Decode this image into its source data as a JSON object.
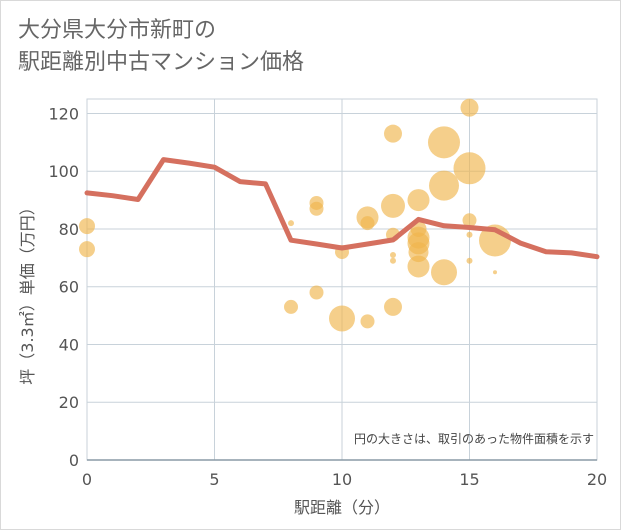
{
  "title_line1": "大分県大分市新町の",
  "title_line2": "駅距離別中古マンション価格",
  "chart_data": {
    "type": "scatter",
    "title": "大分県大分市新町の 駅距離別中古マンション価格",
    "xlabel": "駅距離（分）",
    "ylabel": "坪（3.3㎡）単価（万円）",
    "xlim": [
      0,
      20
    ],
    "ylim": [
      0,
      125
    ],
    "xticks": [
      0,
      5,
      10,
      15,
      20
    ],
    "yticks": [
      0,
      20,
      40,
      60,
      80,
      100,
      120
    ],
    "grid": true,
    "note": "円の大きさは、取引のあった物件面積を示す",
    "colors": {
      "bubble": "#f0b54d",
      "line": "#d5705f",
      "grid": "#c8d2da"
    },
    "bubbles": [
      {
        "x": 0,
        "y": 81,
        "size": 8
      },
      {
        "x": 0,
        "y": 73,
        "size": 8
      },
      {
        "x": 8,
        "y": 82,
        "size": 3
      },
      {
        "x": 8,
        "y": 53,
        "size": 7
      },
      {
        "x": 9,
        "y": 89,
        "size": 7
      },
      {
        "x": 9,
        "y": 87,
        "size": 7
      },
      {
        "x": 9,
        "y": 58,
        "size": 7
      },
      {
        "x": 10,
        "y": 72,
        "size": 7
      },
      {
        "x": 10,
        "y": 49,
        "size": 13
      },
      {
        "x": 11,
        "y": 84,
        "size": 11
      },
      {
        "x": 11,
        "y": 82,
        "size": 7
      },
      {
        "x": 11,
        "y": 48,
        "size": 7
      },
      {
        "x": 12,
        "y": 113,
        "size": 9
      },
      {
        "x": 12,
        "y": 88,
        "size": 12
      },
      {
        "x": 12,
        "y": 78,
        "size": 7
      },
      {
        "x": 12,
        "y": 71,
        "size": 3
      },
      {
        "x": 12,
        "y": 69,
        "size": 3
      },
      {
        "x": 12,
        "y": 53,
        "size": 9
      },
      {
        "x": 13,
        "y": 90,
        "size": 11
      },
      {
        "x": 13,
        "y": 80,
        "size": 8
      },
      {
        "x": 13,
        "y": 77,
        "size": 11
      },
      {
        "x": 13,
        "y": 75,
        "size": 11
      },
      {
        "x": 13,
        "y": 72,
        "size": 10
      },
      {
        "x": 13,
        "y": 67,
        "size": 11
      },
      {
        "x": 14,
        "y": 110,
        "size": 16
      },
      {
        "x": 14,
        "y": 95,
        "size": 15
      },
      {
        "x": 14,
        "y": 65,
        "size": 13
      },
      {
        "x": 15,
        "y": 122,
        "size": 9
      },
      {
        "x": 15,
        "y": 101,
        "size": 16
      },
      {
        "x": 15,
        "y": 83,
        "size": 7
      },
      {
        "x": 15,
        "y": 78,
        "size": 3
      },
      {
        "x": 15,
        "y": 69,
        "size": 3
      },
      {
        "x": 16,
        "y": 76,
        "size": 16
      },
      {
        "x": 16,
        "y": 65,
        "size": 2
      }
    ],
    "line": {
      "x": [
        0,
        1,
        2,
        3,
        4,
        5,
        6,
        7,
        8,
        9,
        10,
        11,
        12,
        13,
        14,
        15,
        16,
        17,
        18,
        19,
        20
      ],
      "y": [
        92.5,
        91.5,
        90.2,
        104,
        102.8,
        101.4,
        96.4,
        95.6,
        76.1,
        74.8,
        73.4,
        74.8,
        76.2,
        83.3,
        81.1,
        80.5,
        79.7,
        75.1,
        72.1,
        71.7,
        70.4
      ]
    }
  }
}
